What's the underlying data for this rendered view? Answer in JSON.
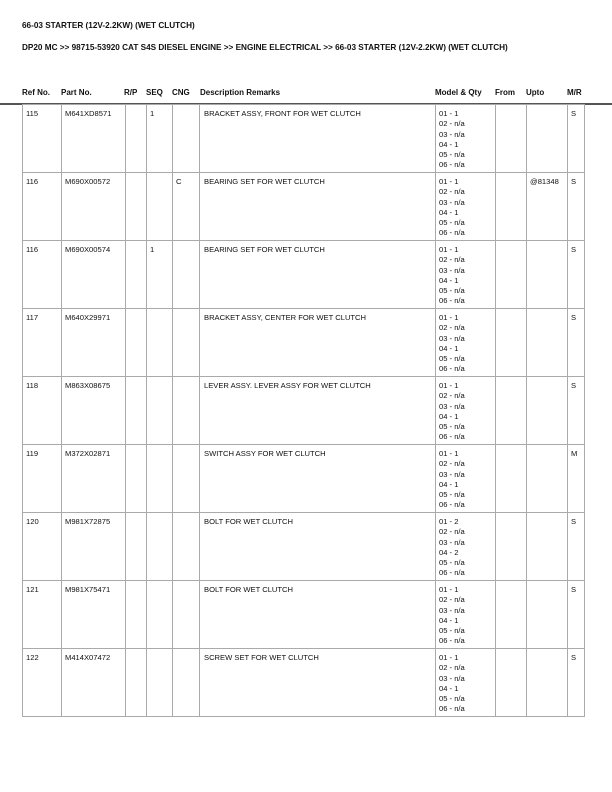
{
  "title": "66-03 STARTER (12V-2.2KW) (WET CLUTCH)",
  "breadcrumb": "DP20 MC >> 98715-53920 CAT S4S DIESEL ENGINE >> ENGINE ELECTRICAL >> 66-03 STARTER (12V-2.2KW) (WET CLUTCH)",
  "columns": [
    "Ref No.",
    "Part No.",
    "R/P",
    "SEQ",
    "CNG",
    "Description Remarks",
    "Model & Qty",
    "From",
    "Upto",
    "M/R"
  ],
  "rows": [
    {
      "ref": "115",
      "part": "M641XD8571",
      "rp": "",
      "seq": "1",
      "cng": "",
      "desc": "BRACKET ASSY, FRONT FOR WET CLUTCH",
      "qty": [
        "01 - 1",
        "02 - n/a",
        "03 - n/a",
        "04 - 1",
        "05 - n/a",
        "06 - n/a"
      ],
      "from": "",
      "upto": "",
      "mr": "S"
    },
    {
      "ref": "116",
      "part": "M690X00572",
      "rp": "",
      "seq": "",
      "cng": "C",
      "desc": "BEARING SET FOR WET CLUTCH",
      "qty": [
        "01 - 1",
        "02 - n/a",
        "03 - n/a",
        "04 - 1",
        "05 - n/a",
        "06 - n/a"
      ],
      "from": "",
      "upto": "@81348",
      "mr": "S"
    },
    {
      "ref": "116",
      "part": "M690X00574",
      "rp": "",
      "seq": "1",
      "cng": "",
      "desc": "BEARING SET FOR WET CLUTCH",
      "qty": [
        "01 - 1",
        "02 - n/a",
        "03 - n/a",
        "04 - 1",
        "05 - n/a",
        "06 - n/a"
      ],
      "from": "",
      "upto": "",
      "mr": "S"
    },
    {
      "ref": "117",
      "part": "M640X29971",
      "rp": "",
      "seq": "",
      "cng": "",
      "desc": "BRACKET ASSY, CENTER FOR WET CLUTCH",
      "qty": [
        "01 - 1",
        "02 - n/a",
        "03 - n/a",
        "04 - 1",
        "05 - n/a",
        "06 - n/a"
      ],
      "from": "",
      "upto": "",
      "mr": "S"
    },
    {
      "ref": "118",
      "part": "M863X08675",
      "rp": "",
      "seq": "",
      "cng": "",
      "desc": "LEVER ASSY. LEVER ASSY FOR WET CLUTCH",
      "qty": [
        "01 - 1",
        "02 - n/a",
        "03 - n/a",
        "04 - 1",
        "05 - n/a",
        "06 - n/a"
      ],
      "from": "",
      "upto": "",
      "mr": "S"
    },
    {
      "ref": "119",
      "part": "M372X02871",
      "rp": "",
      "seq": "",
      "cng": "",
      "desc": "SWITCH ASSY FOR WET CLUTCH",
      "qty": [
        "01 - 1",
        "02 - n/a",
        "03 - n/a",
        "04 - 1",
        "05 - n/a",
        "06 - n/a"
      ],
      "from": "",
      "upto": "",
      "mr": "M"
    },
    {
      "ref": "120",
      "part": "M981X72875",
      "rp": "",
      "seq": "",
      "cng": "",
      "desc": "BOLT FOR WET CLUTCH",
      "qty": [
        "01 - 2",
        "02 - n/a",
        "03 - n/a",
        "04 - 2",
        "05 - n/a",
        "06 - n/a"
      ],
      "from": "",
      "upto": "",
      "mr": "S"
    },
    {
      "ref": "121",
      "part": "M981X75471",
      "rp": "",
      "seq": "",
      "cng": "",
      "desc": "BOLT FOR WET CLUTCH",
      "qty": [
        "01 - 1",
        "02 - n/a",
        "03 - n/a",
        "04 - 1",
        "05 - n/a",
        "06 - n/a"
      ],
      "from": "",
      "upto": "",
      "mr": "S"
    },
    {
      "ref": "122",
      "part": "M414X07472",
      "rp": "",
      "seq": "",
      "cng": "",
      "desc": "SCREW SET FOR WET CLUTCH",
      "qty": [
        "01 - 1",
        "02 - n/a",
        "03 - n/a",
        "04 - 1",
        "05 - n/a",
        "06 - n/a"
      ],
      "from": "",
      "upto": "",
      "mr": "S"
    }
  ]
}
